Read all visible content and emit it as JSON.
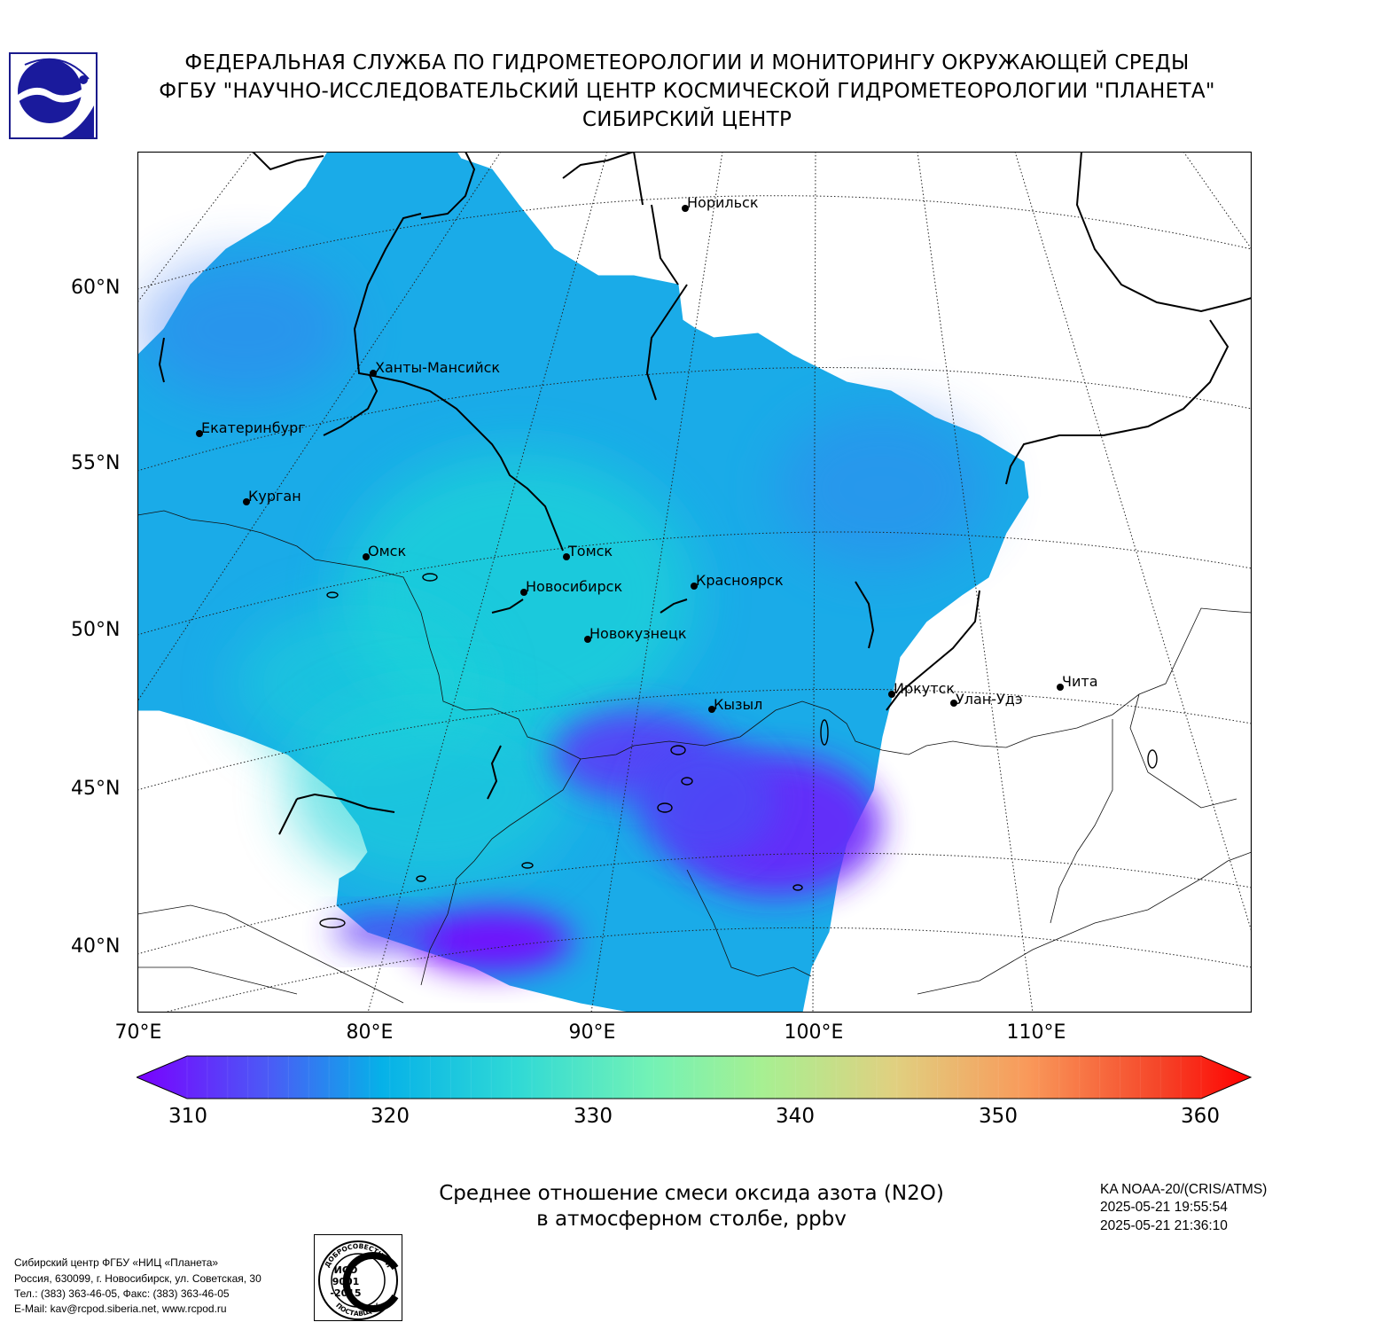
{
  "header": {
    "line1": "ФЕДЕРАЛЬНАЯ СЛУЖБА ПО ГИДРОМЕТЕОРОЛОГИИ И МОНИТОРИНГУ ОКРУЖАЮЩЕЙ СРЕДЫ",
    "line2": "ФГБУ \"НАУЧНО-ИССЛЕДОВАТЕЛЬСКИЙ ЦЕНТР КОСМИЧЕСКОЙ ГИДРОМЕТЕОРОЛОГИИ \"ПЛАНЕТА\"",
    "line3": "СИБИРСКИЙ ЦЕНТР"
  },
  "map": {
    "lat_labels": [
      "60°N",
      "55°N",
      "50°N",
      "45°N",
      "40°N"
    ],
    "lon_labels": [
      "70°E",
      "80°E",
      "90°E",
      "100°E",
      "110°E"
    ],
    "cities": [
      {
        "name": "Норильск"
      },
      {
        "name": "Ханты-Мансийск"
      },
      {
        "name": "Екатеринбург"
      },
      {
        "name": "Курган"
      },
      {
        "name": "Омск"
      },
      {
        "name": "Томск"
      },
      {
        "name": "Новосибирск"
      },
      {
        "name": "Красноярск"
      },
      {
        "name": "Новокузнецк"
      },
      {
        "name": "Иркутск"
      },
      {
        "name": "Улан-Удэ"
      },
      {
        "name": "Чита"
      },
      {
        "name": "Кызыл"
      }
    ],
    "colors": {
      "dominant": "#1aabe8",
      "low": "#7a00ff",
      "mid": "#1ed4d8"
    }
  },
  "colorbar": {
    "min": 310,
    "max": 360,
    "ticks": [
      "310",
      "320",
      "330",
      "340",
      "350",
      "360"
    ],
    "colors": [
      "#7a00ff",
      "#4a5cf6",
      "#06b1e8",
      "#4de8ca",
      "#8fef9a",
      "#d0d882",
      "#f5a860",
      "#f7603a",
      "#ff0000"
    ]
  },
  "caption": {
    "line1": "Среднее отношение смеси оксида азота (N2O)",
    "line2": "в атмосферном столбе, ppbv"
  },
  "satellite": {
    "line1": "KA NOAA-20/(CRIS/ATMS)",
    "line2": "2025-05-21 19:55:54",
    "line3": "2025-05-21 21:36:10"
  },
  "footer": {
    "line1": "Сибирский центр ФГБУ «НИЦ «Планета»",
    "line2": "Россия, 630099, г. Новосибирск, ул. Советская, 30",
    "line3": "Тел.: (383) 363-46-05, Факс: (383) 363-46-05",
    "line4": "E-Mail: kav@rcpod.siberia.net, www.rcpod.ru"
  },
  "iso_badge": {
    "top_text": "ДОБРОСОВЕСТНЫЙ",
    "code1": "ИСО",
    "code2": "9001",
    "code3": "-2015",
    "bottom_text": "ПОСТАВЩИК"
  }
}
